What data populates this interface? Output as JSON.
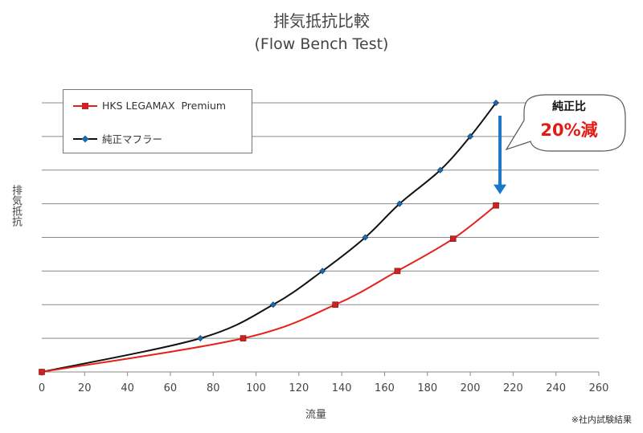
{
  "chart_data": {
    "type": "line",
    "title": "排気抵抗比較",
    "subtitle": "(Flow Bench Test)",
    "xlabel": "流量",
    "ylabel": "排気抵抗",
    "xlim": [
      0,
      260
    ],
    "x_ticks": [
      0,
      20,
      40,
      60,
      80,
      100,
      120,
      140,
      160,
      180,
      200,
      220,
      240,
      260
    ],
    "ylim": [
      0,
      8
    ],
    "grid": "horizontal",
    "legend_position": "top-left",
    "series": [
      {
        "name": "HKS LEGAMAX  Premium",
        "color": "#e8201a",
        "marker": "square",
        "x": [
          0,
          94,
          137,
          166,
          192,
          212
        ],
        "y": [
          0,
          1.0,
          2.0,
          3.0,
          3.96,
          4.95
        ]
      },
      {
        "name": "純正マフラー",
        "color": "#111111",
        "marker": "diamond",
        "x": [
          0,
          74,
          108,
          131,
          151,
          167,
          186,
          200,
          212
        ],
        "y": [
          0,
          1.0,
          2.0,
          3.0,
          4.0,
          5.0,
          6.0,
          7.0,
          8.0
        ]
      }
    ],
    "annotation": {
      "line1": "純正比",
      "line2": "20%減"
    },
    "footnote": "※社内試験結果"
  }
}
